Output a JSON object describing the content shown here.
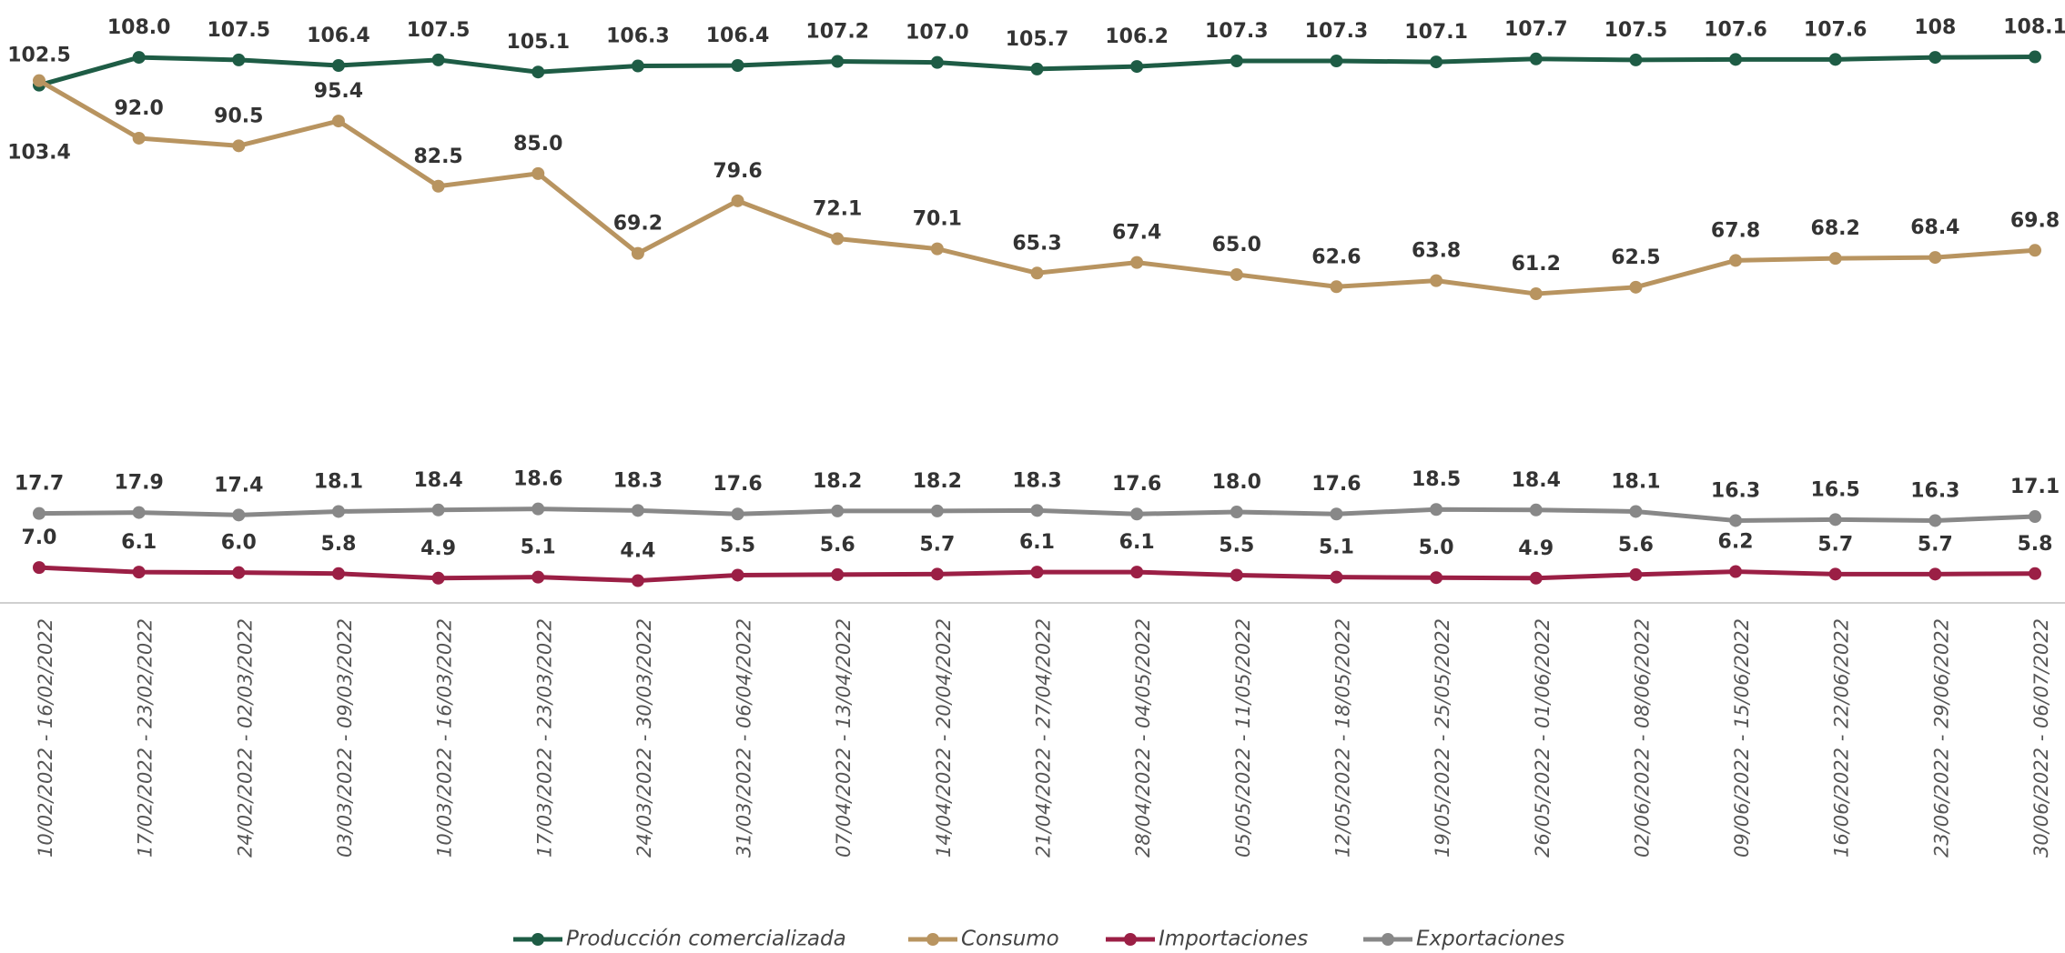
{
  "chart_data": {
    "type": "line",
    "categories": [
      "10/02/2022 - 16/02/2022",
      "17/02/2022 - 23/02/2022",
      "24/02/2022 - 02/03/2022",
      "03/03/2022 - 09/03/2022",
      "10/03/2022 - 16/03/2022",
      "17/03/2022 - 23/03/2022",
      "24/03/2022 - 30/03/2022",
      "31/03/2022 - 06/04/2022",
      "07/04/2022 - 13/04/2022",
      "14/04/2022 - 20/04/2022",
      "21/04/2022 - 27/04/2022",
      "28/04/2022 - 04/05/2022",
      "05/05/2022 - 11/05/2022",
      "12/05/2022 - 18/05/2022",
      "19/05/2022 - 25/05/2022",
      "26/05/2022 - 01/06/2022",
      "02/06/2022 - 08/06/2022",
      "09/06/2022 - 15/06/2022",
      "16/06/2022 - 22/06/2022",
      "23/06/2022 - 29/06/2022",
      "30/06/2022 - 06/07/2022"
    ],
    "series": [
      {
        "name": "Producción comercializada",
        "color": "#1e5c45",
        "values": [
          102.5,
          108.0,
          107.5,
          106.4,
          107.5,
          105.1,
          106.3,
          106.4,
          107.2,
          107.0,
          105.7,
          106.2,
          107.3,
          107.3,
          107.1,
          107.7,
          107.5,
          107.6,
          107.6,
          108,
          108.1
        ],
        "value_labels": [
          "102.5",
          "108.0",
          "107.5",
          "106.4",
          "107.5",
          "105.1",
          "106.3",
          "106.4",
          "107.2",
          "107.0",
          "105.7",
          "106.2",
          "107.3",
          "107.3",
          "107.1",
          "107.7",
          "107.5",
          "107.6",
          "107.6",
          "108",
          "108.1"
        ]
      },
      {
        "name": "Consumo",
        "color": "#b89460",
        "values": [
          103.4,
          92.0,
          90.5,
          95.4,
          82.5,
          85.0,
          69.2,
          79.6,
          72.1,
          70.1,
          65.3,
          67.4,
          65.0,
          62.6,
          63.8,
          61.2,
          62.5,
          67.8,
          68.2,
          68.4,
          69.8
        ],
        "value_labels": [
          "103.4",
          "92.0",
          "90.5",
          "95.4",
          "82.5",
          "85.0",
          "69.2",
          "79.6",
          "72.1",
          "70.1",
          "65.3",
          "67.4",
          "65.0",
          "62.6",
          "63.8",
          "61.2",
          "62.5",
          "67.8",
          "68.2",
          "68.4",
          "69.8"
        ]
      },
      {
        "name": "Importaciones",
        "color": "#9b1f45",
        "values": [
          7.0,
          6.1,
          6.0,
          5.8,
          4.9,
          5.1,
          4.4,
          5.5,
          5.6,
          5.7,
          6.1,
          6.1,
          5.5,
          5.1,
          5.0,
          4.9,
          5.6,
          6.2,
          5.7,
          5.7,
          5.8
        ],
        "value_labels": [
          "7.0",
          "6.1",
          "6.0",
          "5.8",
          "4.9",
          "5.1",
          "4.4",
          "5.5",
          "5.6",
          "5.7",
          "6.1",
          "6.1",
          "5.5",
          "5.1",
          "5.0",
          "4.9",
          "5.6",
          "6.2",
          "5.7",
          "5.7",
          "5.8"
        ]
      },
      {
        "name": "Exportaciones",
        "color": "#888888",
        "values": [
          17.7,
          17.9,
          17.4,
          18.1,
          18.4,
          18.6,
          18.3,
          17.6,
          18.2,
          18.2,
          18.3,
          17.6,
          18.0,
          17.6,
          18.5,
          18.4,
          18.1,
          16.3,
          16.5,
          16.3,
          17.1
        ],
        "value_labels": [
          "17.7",
          "17.9",
          "17.4",
          "18.1",
          "18.4",
          "18.6",
          "18.3",
          "17.6",
          "18.2",
          "18.2",
          "18.3",
          "17.6",
          "18.0",
          "17.6",
          "18.5",
          "18.4",
          "18.1",
          "16.3",
          "16.5",
          "16.3",
          "17.1"
        ]
      }
    ],
    "ylim": [
      0,
      110
    ]
  }
}
